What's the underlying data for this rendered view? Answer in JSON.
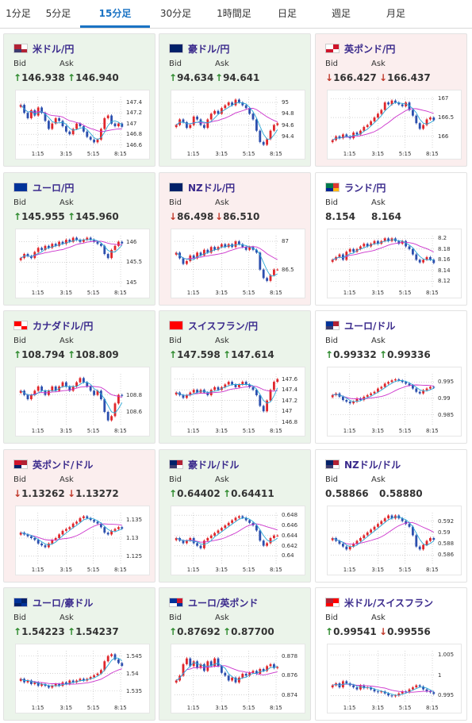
{
  "tabs": [
    {
      "label": "1分足",
      "active": false
    },
    {
      "label": "5分足",
      "active": false
    },
    {
      "label": "15分足",
      "active": true
    },
    {
      "label": "30分足",
      "active": false
    },
    {
      "label": "1時間足",
      "active": false
    },
    {
      "label": "日足",
      "active": false
    },
    {
      "label": "週足",
      "active": false
    },
    {
      "label": "月足",
      "active": false
    }
  ],
  "colors": {
    "up_bg": "#ebf4ea",
    "down_bg": "#fbeeee",
    "tab_active": "#1a73c4",
    "candle_up": "#e0262b",
    "candle_down": "#2c4fae",
    "ma_short": "#2aa8d6",
    "ma_long": "#cc33cc"
  },
  "labels": {
    "bid": "Bid",
    "ask": "Ask"
  },
  "x_ticks": [
    "1:15",
    "3:15",
    "5:15",
    "8:15"
  ],
  "cards": [
    {
      "title": "米ドル/円",
      "state": "up",
      "flag": "us",
      "bid": "146.938",
      "ask": "146.940",
      "bid_dir": "up",
      "ask_dir": "up",
      "yticks": [
        "147.4",
        "147.2",
        "147",
        "146.8",
        "146.6"
      ],
      "ymin": 146.55,
      "ymax": 147.5,
      "closes": [
        147.35,
        147.2,
        147.1,
        147.25,
        147.15,
        147.3,
        147.2,
        147.05,
        146.9,
        147.0,
        147.1,
        147.05,
        146.95,
        146.85,
        146.8,
        146.9,
        147.0,
        146.95,
        146.85,
        146.75,
        146.7,
        146.65,
        146.7,
        146.9,
        147.1,
        147.15,
        147.0,
        146.95,
        147.0,
        146.94
      ]
    },
    {
      "title": "豪ドル/円",
      "state": "up",
      "flag": "au",
      "bid": "94.634",
      "ask": "94.641",
      "bid_dir": "up",
      "ask_dir": "up",
      "yticks": [
        "95",
        "94.8",
        "94.6",
        "94.4"
      ],
      "ymin": 94.2,
      "ymax": 95.1,
      "closes": [
        94.6,
        94.7,
        94.65,
        94.55,
        94.6,
        94.75,
        94.7,
        94.6,
        94.55,
        94.7,
        94.8,
        94.85,
        94.8,
        94.9,
        94.95,
        95.0,
        94.95,
        95.05,
        95.0,
        94.95,
        94.9,
        94.8,
        94.7,
        94.5,
        94.3,
        94.25,
        94.35,
        94.5,
        94.6,
        94.63
      ]
    },
    {
      "title": "英ポンド/円",
      "state": "down",
      "flag": "gb",
      "bid": "166.427",
      "ask": "166.437",
      "bid_dir": "down",
      "ask_dir": "down",
      "yticks": [
        "167",
        "166.5",
        "166"
      ],
      "ymin": 165.7,
      "ymax": 167.05,
      "closes": [
        165.9,
        166.0,
        165.95,
        166.05,
        166.0,
        165.95,
        166.1,
        166.05,
        166.15,
        166.25,
        166.3,
        166.4,
        166.5,
        166.6,
        166.7,
        166.9,
        166.85,
        166.95,
        166.9,
        166.85,
        166.8,
        166.9,
        166.7,
        166.55,
        166.35,
        166.2,
        166.3,
        166.45,
        166.5,
        166.43
      ]
    },
    {
      "title": "ユーロ/円",
      "state": "up",
      "flag": "eu",
      "bid": "145.955",
      "ask": "145.960",
      "bid_dir": "up",
      "ask_dir": "up",
      "yticks": [
        "146",
        "145.5",
        "145"
      ],
      "ymin": 144.9,
      "ymax": 146.15,
      "closes": [
        145.6,
        145.7,
        145.65,
        145.6,
        145.75,
        145.85,
        145.8,
        145.9,
        145.85,
        145.95,
        145.9,
        146.0,
        145.95,
        146.05,
        146.0,
        146.1,
        146.05,
        146.0,
        146.05,
        146.1,
        146.05,
        146.0,
        145.95,
        145.9,
        145.7,
        145.6,
        145.8,
        145.9,
        146.0,
        145.96
      ]
    },
    {
      "title": "NZドル/円",
      "state": "down",
      "flag": "nz",
      "bid": "86.498",
      "ask": "86.510",
      "bid_dir": "down",
      "ask_dir": "down",
      "yticks": [
        "87",
        "86.5"
      ],
      "ymin": 86.2,
      "ymax": 87.1,
      "closes": [
        86.8,
        86.7,
        86.6,
        86.65,
        86.75,
        86.7,
        86.8,
        86.75,
        86.85,
        86.8,
        86.9,
        86.85,
        86.9,
        86.95,
        86.9,
        86.95,
        86.9,
        87.0,
        86.95,
        86.9,
        86.85,
        86.9,
        86.85,
        86.8,
        86.5,
        86.35,
        86.3,
        86.4,
        86.5,
        86.5
      ]
    },
    {
      "title": "ランド/円",
      "state": "neutral",
      "flag": "za",
      "bid": "8.154",
      "ask": "8.164",
      "bid_dir": "none",
      "ask_dir": "none",
      "yticks": [
        "8.2",
        "8.18",
        "8.16",
        "8.14",
        "8.12"
      ],
      "ymin": 8.11,
      "ymax": 8.205,
      "closes": [
        8.16,
        8.165,
        8.17,
        8.16,
        8.175,
        8.18,
        8.175,
        8.18,
        8.185,
        8.19,
        8.185,
        8.19,
        8.195,
        8.19,
        8.195,
        8.2,
        8.195,
        8.2,
        8.195,
        8.19,
        8.195,
        8.185,
        8.18,
        8.17,
        8.16,
        8.155,
        8.16,
        8.165,
        8.16,
        8.154
      ]
    },
    {
      "title": "カナダドル/円",
      "state": "up",
      "flag": "ca",
      "bid": "108.794",
      "ask": "108.809",
      "bid_dir": "up",
      "ask_dir": "up",
      "yticks": [
        "108.8",
        "108.6"
      ],
      "ymin": 108.45,
      "ymax": 109.05,
      "closes": [
        108.85,
        108.8,
        108.75,
        108.8,
        108.85,
        108.9,
        108.85,
        108.8,
        108.85,
        108.9,
        108.85,
        108.9,
        108.95,
        108.9,
        108.85,
        108.9,
        108.95,
        109.0,
        108.95,
        108.9,
        108.85,
        108.8,
        108.85,
        108.75,
        108.6,
        108.5,
        108.55,
        108.7,
        108.8,
        108.79
      ]
    },
    {
      "title": "スイスフラン/円",
      "state": "up",
      "flag": "ch",
      "bid": "147.598",
      "ask": "147.614",
      "bid_dir": "up",
      "ask_dir": "up",
      "yticks": [
        "147.6",
        "147.4",
        "147.2",
        "147",
        "146.8"
      ],
      "ymin": 146.75,
      "ymax": 147.7,
      "closes": [
        147.35,
        147.3,
        147.25,
        147.3,
        147.35,
        147.4,
        147.35,
        147.4,
        147.35,
        147.3,
        147.4,
        147.45,
        147.4,
        147.45,
        147.5,
        147.55,
        147.5,
        147.45,
        147.5,
        147.55,
        147.5,
        147.45,
        147.4,
        147.3,
        147.1,
        147.0,
        147.2,
        147.4,
        147.55,
        147.6
      ]
    },
    {
      "title": "ユーロ/ドル",
      "state": "neutral",
      "flag": "euus",
      "bid": "0.99332",
      "ask": "0.99336",
      "bid_dir": "up",
      "ask_dir": "up",
      "yticks": [
        "0.995",
        "0.99",
        "0.985"
      ],
      "ymin": 0.982,
      "ymax": 0.9975,
      "closes": [
        0.991,
        0.9915,
        0.9905,
        0.9895,
        0.989,
        0.9885,
        0.989,
        0.99,
        0.9895,
        0.9905,
        0.991,
        0.9915,
        0.992,
        0.993,
        0.9935,
        0.9945,
        0.995,
        0.9955,
        0.9958,
        0.9955,
        0.995,
        0.9945,
        0.994,
        0.993,
        0.992,
        0.9915,
        0.9925,
        0.993,
        0.9935,
        0.9933
      ]
    },
    {
      "title": "英ポンド/ドル",
      "state": "down",
      "flag": "gbus",
      "bid": "1.13262",
      "ask": "1.13272",
      "bid_dir": "down",
      "ask_dir": "down",
      "yticks": [
        "1.135",
        "1.13",
        "1.125"
      ],
      "ymin": 1.123,
      "ymax": 1.137,
      "closes": [
        1.1315,
        1.131,
        1.1305,
        1.13,
        1.1295,
        1.1285,
        1.128,
        1.1275,
        1.1285,
        1.1295,
        1.13,
        1.131,
        1.132,
        1.1325,
        1.133,
        1.134,
        1.1345,
        1.1355,
        1.136,
        1.1355,
        1.135,
        1.1345,
        1.134,
        1.133,
        1.1315,
        1.131,
        1.132,
        1.1325,
        1.133,
        1.1326
      ]
    },
    {
      "title": "豪ドル/ドル",
      "state": "up",
      "flag": "auus",
      "bid": "0.64402",
      "ask": "0.64411",
      "bid_dir": "up",
      "ask_dir": "up",
      "yticks": [
        "0.648",
        "0.646",
        "0.644",
        "0.642",
        "0.64"
      ],
      "ymin": 0.6385,
      "ymax": 0.6485,
      "closes": [
        0.6435,
        0.643,
        0.6425,
        0.643,
        0.6435,
        0.6425,
        0.642,
        0.6415,
        0.643,
        0.6435,
        0.644,
        0.6445,
        0.645,
        0.6455,
        0.646,
        0.6465,
        0.647,
        0.6475,
        0.6478,
        0.6475,
        0.647,
        0.6465,
        0.646,
        0.645,
        0.643,
        0.642,
        0.6425,
        0.6435,
        0.644,
        0.644
      ]
    },
    {
      "title": "NZドル/ドル",
      "state": "neutral",
      "flag": "nzus",
      "bid": "0.58866",
      "ask": "0.58880",
      "bid_dir": "none",
      "ask_dir": "none",
      "yticks": [
        "0.592",
        "0.59",
        "0.588",
        "0.586"
      ],
      "ymin": 0.5845,
      "ymax": 0.5935,
      "closes": [
        0.589,
        0.5885,
        0.588,
        0.5875,
        0.587,
        0.5875,
        0.588,
        0.5885,
        0.589,
        0.5895,
        0.59,
        0.5905,
        0.591,
        0.5915,
        0.592,
        0.5925,
        0.593,
        0.5925,
        0.593,
        0.5925,
        0.592,
        0.5915,
        0.591,
        0.5895,
        0.5875,
        0.587,
        0.5878,
        0.5885,
        0.589,
        0.5887
      ]
    },
    {
      "title": "ユーロ/豪ドル",
      "state": "up",
      "flag": "euau",
      "bid": "1.54223",
      "ask": "1.54237",
      "bid_dir": "up",
      "ask_dir": "up",
      "yticks": [
        "1.545",
        "1.54",
        "1.535"
      ],
      "ymin": 1.532,
      "ymax": 1.5465,
      "closes": [
        1.5385,
        1.5375,
        1.538,
        1.537,
        1.5375,
        1.5365,
        1.537,
        1.5365,
        1.536,
        1.5365,
        1.537,
        1.5365,
        1.5375,
        1.537,
        1.538,
        1.5375,
        1.538,
        1.5385,
        1.538,
        1.5385,
        1.539,
        1.5395,
        1.54,
        1.541,
        1.5435,
        1.545,
        1.5455,
        1.544,
        1.543,
        1.5422
      ]
    },
    {
      "title": "ユーロ/英ポンド",
      "state": "up",
      "flag": "eugb",
      "bid": "0.87692",
      "ask": "0.87700",
      "bid_dir": "up",
      "ask_dir": "up",
      "yticks": [
        "0.878",
        "0.876",
        "0.874"
      ],
      "ymin": 0.8733,
      "ymax": 0.8786,
      "closes": [
        0.8755,
        0.876,
        0.8772,
        0.8778,
        0.877,
        0.8775,
        0.8768,
        0.8772,
        0.8765,
        0.8775,
        0.877,
        0.8778,
        0.877,
        0.8763,
        0.876,
        0.8755,
        0.8758,
        0.8753,
        0.8758,
        0.8762,
        0.876,
        0.8763,
        0.8765,
        0.8762,
        0.8767,
        0.8765,
        0.877,
        0.8772,
        0.8768,
        0.8769
      ]
    },
    {
      "title": "米ドル/スイスフラン",
      "state": "neutral",
      "flag": "usch",
      "bid": "0.99541",
      "ask": "0.99556",
      "bid_dir": "up",
      "ask_dir": "down",
      "yticks": [
        "1.005",
        "1",
        "0.995"
      ],
      "ymin": 0.9935,
      "ymax": 1.006,
      "closes": [
        0.9975,
        0.998,
        0.997,
        0.9985,
        0.998,
        0.9975,
        0.997,
        0.9965,
        0.9975,
        0.9968,
        0.997,
        0.9965,
        0.996,
        0.9958,
        0.996,
        0.9955,
        0.995,
        0.9948,
        0.995,
        0.9955,
        0.996,
        0.9958,
        0.9965,
        0.997,
        0.9975,
        0.9972,
        0.9965,
        0.996,
        0.9958,
        0.9954
      ]
    }
  ]
}
